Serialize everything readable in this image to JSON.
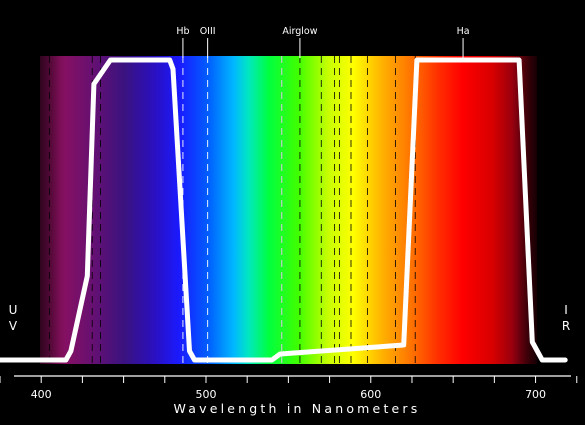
{
  "chart_data": {
    "type": "line",
    "xlabel": "Wavelength in Nanometers",
    "xlim": [
      375,
      730
    ],
    "ylim": [
      0,
      100
    ],
    "xticks": [
      400,
      500,
      600,
      700
    ],
    "x_minor_step": 25,
    "grid": false,
    "background": "visible spectrum gradient",
    "edge_labels": {
      "left": "UV",
      "right": "IR"
    },
    "lines": {
      "annotated": [
        {
          "label": "Hb",
          "wavelength": 486
        },
        {
          "label": "OIII",
          "wavelength": 501
        },
        {
          "label": "Airglow",
          "wavelength": 557
        },
        {
          "label": "Ha",
          "wavelength": 656
        }
      ],
      "white_dashed": [
        486,
        501,
        546
      ],
      "black_dashed": [
        405,
        431,
        436,
        546,
        557,
        570,
        578,
        581,
        588,
        598,
        615,
        627
      ]
    },
    "series": [
      {
        "color": "#ffffff",
        "x": [
          375,
          415,
          418,
          428,
          432,
          442,
          445,
          478,
          480,
          490,
          493,
          502,
          505,
          540,
          545,
          620,
          628,
          690,
          698,
          704,
          718
        ],
        "y": [
          0,
          0,
          3,
          28,
          92,
          100,
          100,
          100,
          97,
          3,
          0,
          0,
          0,
          0,
          2,
          5,
          100,
          100,
          6,
          0,
          0
        ]
      }
    ]
  }
}
